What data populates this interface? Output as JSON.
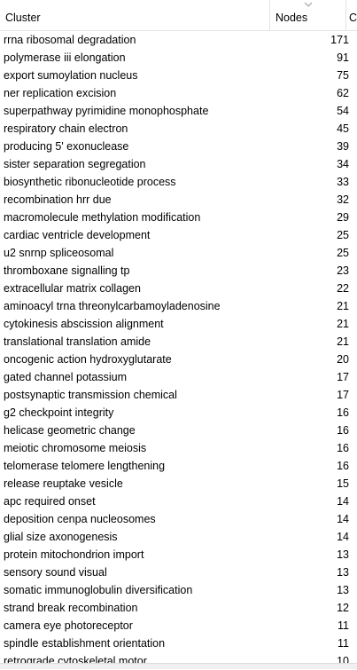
{
  "header": {
    "cluster": "Cluster",
    "nodes": "Nodes",
    "extra": "C"
  },
  "rows": [
    {
      "name": "rrna ribosomal degradation",
      "nodes": "171"
    },
    {
      "name": "polymerase iii elongation",
      "nodes": "91"
    },
    {
      "name": "export sumoylation nucleus",
      "nodes": "75"
    },
    {
      "name": "ner replication excision",
      "nodes": "62"
    },
    {
      "name": "superpathway pyrimidine monophosphate",
      "nodes": "54"
    },
    {
      "name": "respiratory chain electron",
      "nodes": "45"
    },
    {
      "name": "producing 5' exonuclease",
      "nodes": "39"
    },
    {
      "name": "sister separation segregation",
      "nodes": "34"
    },
    {
      "name": "biosynthetic ribonucleotide process",
      "nodes": "33"
    },
    {
      "name": "recombination hrr due",
      "nodes": "32"
    },
    {
      "name": "macromolecule methylation modification",
      "nodes": "29"
    },
    {
      "name": "cardiac ventricle development",
      "nodes": "25"
    },
    {
      "name": "u2 snrnp spliceosomal",
      "nodes": "25"
    },
    {
      "name": "thromboxane signalling tp",
      "nodes": "23"
    },
    {
      "name": "extracellular matrix collagen",
      "nodes": "22"
    },
    {
      "name": "aminoacyl trna threonylcarbamoyladenosine",
      "nodes": "21"
    },
    {
      "name": "cytokinesis abscission alignment",
      "nodes": "21"
    },
    {
      "name": "translational translation amide",
      "nodes": "21"
    },
    {
      "name": "oncogenic action hydroxyglutarate",
      "nodes": "20"
    },
    {
      "name": "gated channel potassium",
      "nodes": "17"
    },
    {
      "name": "postsynaptic transmission chemical",
      "nodes": "17"
    },
    {
      "name": "g2 checkpoint integrity",
      "nodes": "16"
    },
    {
      "name": "helicase geometric change",
      "nodes": "16"
    },
    {
      "name": "meiotic chromosome meiosis",
      "nodes": "16"
    },
    {
      "name": "telomerase telomere lengthening",
      "nodes": "16"
    },
    {
      "name": "release reuptake vesicle",
      "nodes": "15"
    },
    {
      "name": "apc required onset",
      "nodes": "14"
    },
    {
      "name": "deposition cenpa nucleosomes",
      "nodes": "14"
    },
    {
      "name": "glial size axonogenesis",
      "nodes": "14"
    },
    {
      "name": "protein mitochondrion import",
      "nodes": "13"
    },
    {
      "name": "sensory sound visual",
      "nodes": "13"
    },
    {
      "name": "somatic immunoglobulin diversification",
      "nodes": "13"
    },
    {
      "name": "strand break recombination",
      "nodes": "12"
    },
    {
      "name": "camera eye photoreceptor",
      "nodes": "11"
    },
    {
      "name": "spindle establishment orientation",
      "nodes": "11"
    },
    {
      "name": "retrograde cytoskeletal motor",
      "nodes": "10"
    }
  ]
}
